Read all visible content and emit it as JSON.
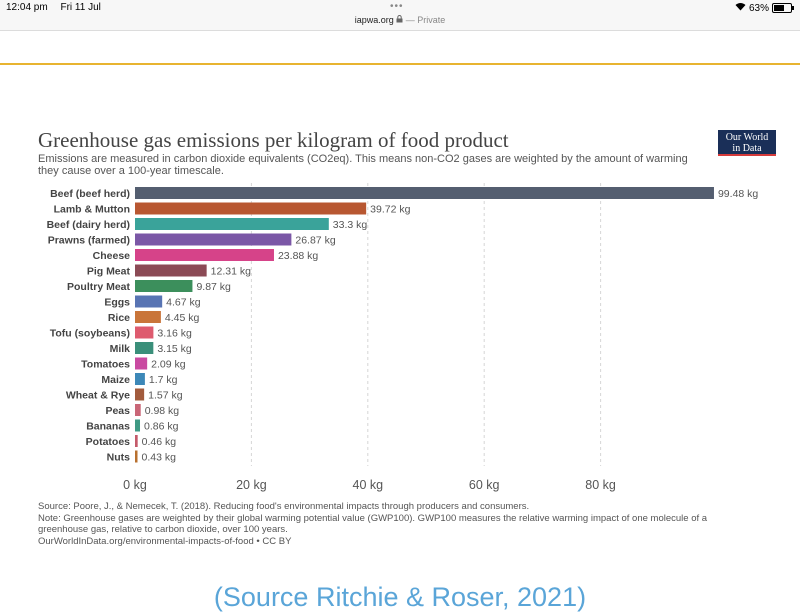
{
  "status_bar": {
    "time": "12:04 pm",
    "date": "Fri 11 Jul",
    "dots": "•••",
    "url": "iapwa.org",
    "privacy": "— Private",
    "lock_icon": "lock-icon",
    "wifi_icon": "wifi-icon",
    "battery": "63%",
    "battery_level": 0.63
  },
  "page": {
    "accent_color": "#e8b430",
    "caption": "(Source Ritchie & Roser, 2021)"
  },
  "logo": {
    "line1": "Our World",
    "line2": "in Data"
  },
  "footer": {
    "source": "Source: Poore, J., & Nemecek, T. (2018). Reducing food's environmental impacts through producers and consumers.",
    "note": "Note: Greenhouse gases are weighted by their global warming potential value (GWP100). GWP100 measures the relative warming impact of one molecule of a greenhouse gas, relative to carbon dioxide, over 100 years.",
    "link": "OurWorldInData.org/environmental-impacts-of-food • CC BY"
  },
  "chart_data": {
    "type": "bar",
    "orientation": "horizontal",
    "title": "Greenhouse gas emissions per kilogram of food product",
    "subtitle": "Emissions are measured in carbon dioxide equivalents (CO2eq). This means non-CO2 gases are weighted by the amount of warming they cause over a 100-year timescale.",
    "unit_suffix": " kg",
    "categories": [
      "Beef (beef herd)",
      "Lamb & Mutton",
      "Beef (dairy herd)",
      "Prawns (farmed)",
      "Cheese",
      "Pig Meat",
      "Poultry Meat",
      "Eggs",
      "Rice",
      "Tofu (soybeans)",
      "Milk",
      "Tomatoes",
      "Maize",
      "Wheat & Rye",
      "Peas",
      "Bananas",
      "Potatoes",
      "Nuts"
    ],
    "values": [
      99.48,
      39.72,
      33.3,
      26.87,
      23.88,
      12.31,
      9.87,
      4.67,
      4.45,
      3.16,
      3.15,
      2.09,
      1.7,
      1.57,
      0.98,
      0.86,
      0.46,
      0.43
    ],
    "value_labels": [
      "99.48 kg",
      "39.72 kg",
      "33.3 kg",
      "26.87 kg",
      "23.88 kg",
      "12.31 kg",
      "9.87 kg",
      "4.67 kg",
      "4.45 kg",
      "3.16 kg",
      "3.15 kg",
      "2.09 kg",
      "1.7 kg",
      "1.57 kg",
      "0.98 kg",
      "0.86 kg",
      "0.46 kg",
      "0.43 kg"
    ],
    "colors": [
      "#545e70",
      "#b85731",
      "#3aa39a",
      "#7b57a6",
      "#d64389",
      "#8b4a55",
      "#3c8f5c",
      "#5874b3",
      "#c9753a",
      "#de5b6f",
      "#3a8f7a",
      "#c94aa1",
      "#3d88b8",
      "#a25b3d",
      "#c96677",
      "#3f9a84",
      "#c45a6a",
      "#b8702f"
    ],
    "xticks": [
      0,
      20,
      40,
      60,
      80
    ],
    "xtick_labels": [
      "0 kg",
      "20 kg",
      "40 kg",
      "60 kg",
      "80 kg"
    ],
    "xlim": [
      0,
      100
    ],
    "grid": true
  }
}
